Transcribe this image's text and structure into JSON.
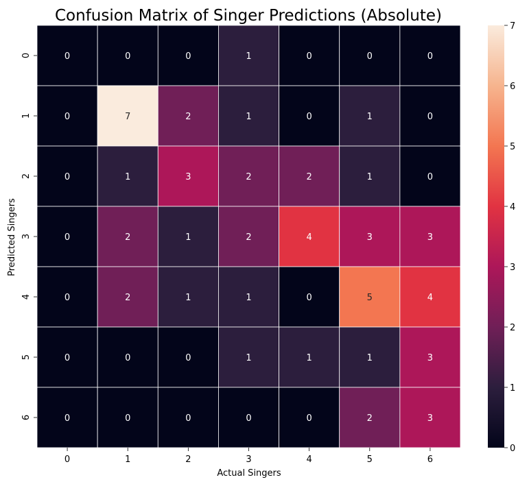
{
  "chart_data": {
    "type": "heatmap",
    "title": "Confusion Matrix of Singer Predictions (Absolute)",
    "xlabel": "Actual Singers",
    "ylabel": "Predicted Singers",
    "x_categories": [
      "0",
      "1",
      "2",
      "3",
      "4",
      "5",
      "6"
    ],
    "y_categories": [
      "0",
      "1",
      "2",
      "3",
      "4",
      "5",
      "6"
    ],
    "values": [
      [
        0,
        0,
        0,
        1,
        0,
        0,
        0
      ],
      [
        0,
        7,
        2,
        1,
        0,
        1,
        0
      ],
      [
        0,
        1,
        3,
        2,
        2,
        1,
        0
      ],
      [
        0,
        2,
        1,
        2,
        4,
        3,
        3
      ],
      [
        0,
        2,
        1,
        1,
        0,
        5,
        4
      ],
      [
        0,
        0,
        0,
        1,
        1,
        1,
        3
      ],
      [
        0,
        0,
        0,
        0,
        0,
        2,
        3
      ]
    ],
    "colorbar": {
      "range": [
        0,
        7
      ],
      "ticks": [
        "0",
        "1",
        "2",
        "3",
        "4",
        "5",
        "6",
        "7"
      ]
    },
    "colormap": "rocket",
    "grid": true
  }
}
